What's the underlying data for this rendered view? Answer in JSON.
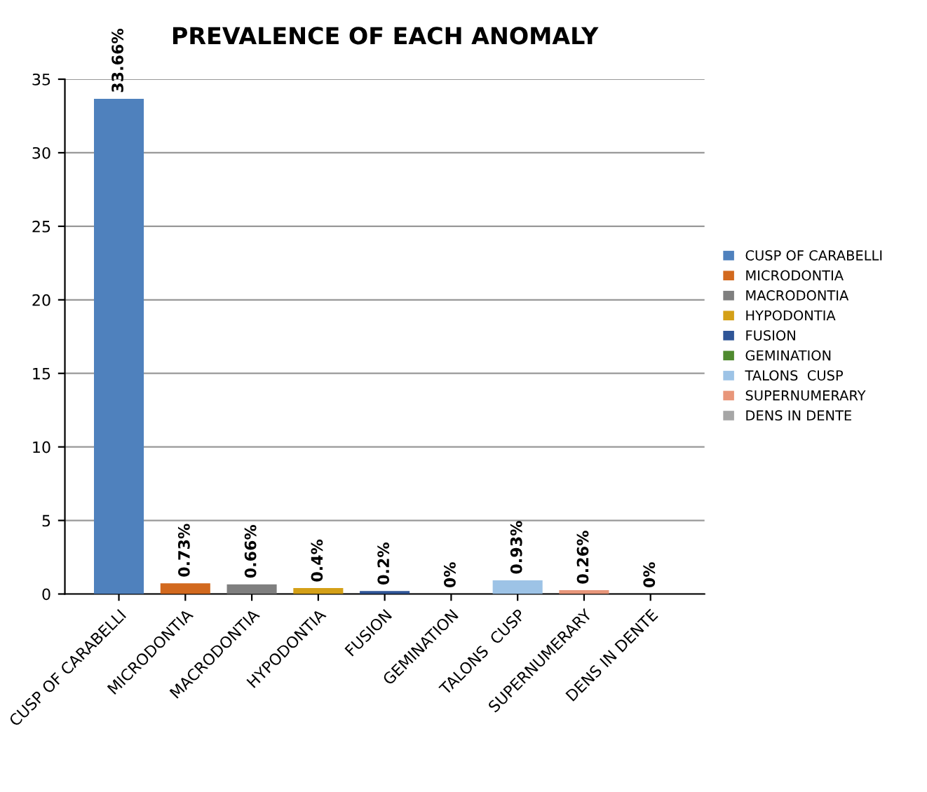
{
  "chart_data": {
    "type": "bar",
    "title": "PREVALENCE OF EACH ANOMALY",
    "categories": [
      "CUSP OF CARABELLI",
      "MICRODONTIA",
      "MACRODONTIA",
      "HYPODONTIA",
      "FUSION",
      "GEMINATION",
      "TALONS  CUSP",
      "SUPERNUMERARY",
      "DENS IN DENTE"
    ],
    "series": [
      {
        "name": "CUSP OF CARABELLI",
        "color": "#4f81bd",
        "values": [
          33.66,
          null,
          null,
          null,
          null,
          null,
          null,
          null,
          null
        ]
      },
      {
        "name": "MICRODONTIA",
        "color": "#d2691e",
        "values": [
          null,
          0.73,
          null,
          null,
          null,
          null,
          null,
          null,
          null
        ]
      },
      {
        "name": "MACRODONTIA",
        "color": "#7f7f7f",
        "values": [
          null,
          null,
          0.66,
          null,
          null,
          null,
          null,
          null,
          null
        ]
      },
      {
        "name": "HYPODONTIA",
        "color": "#d4a017",
        "values": [
          null,
          null,
          null,
          0.4,
          null,
          null,
          null,
          null,
          null
        ]
      },
      {
        "name": "FUSION",
        "color": "#2f5597",
        "values": [
          null,
          null,
          null,
          null,
          0.2,
          null,
          null,
          null,
          null
        ]
      },
      {
        "name": "GEMINATION",
        "color": "#4f8a2f",
        "values": [
          null,
          null,
          null,
          null,
          null,
          0,
          null,
          null,
          null
        ]
      },
      {
        "name": "TALONS  CUSP",
        "color": "#9dc3e6",
        "values": [
          null,
          null,
          null,
          null,
          null,
          null,
          0.93,
          null,
          null
        ]
      },
      {
        "name": "SUPERNUMERARY",
        "color": "#e8967a",
        "values": [
          null,
          null,
          null,
          null,
          null,
          null,
          null,
          0.26,
          null
        ]
      },
      {
        "name": "DENS IN DENTE",
        "color": "#a6a6a6",
        "values": [
          null,
          null,
          null,
          null,
          null,
          null,
          null,
          null,
          0
        ]
      }
    ],
    "value_labels": [
      "33.66%",
      "0.73%",
      "0.66%",
      "0.4%",
      "0.2%",
      "0%",
      "0.93%",
      "0.26%",
      "0%"
    ],
    "ylim": [
      0,
      35
    ],
    "yticks": [
      0,
      5,
      10,
      15,
      20,
      25,
      30,
      35
    ],
    "grid": "y",
    "legend": "right"
  }
}
